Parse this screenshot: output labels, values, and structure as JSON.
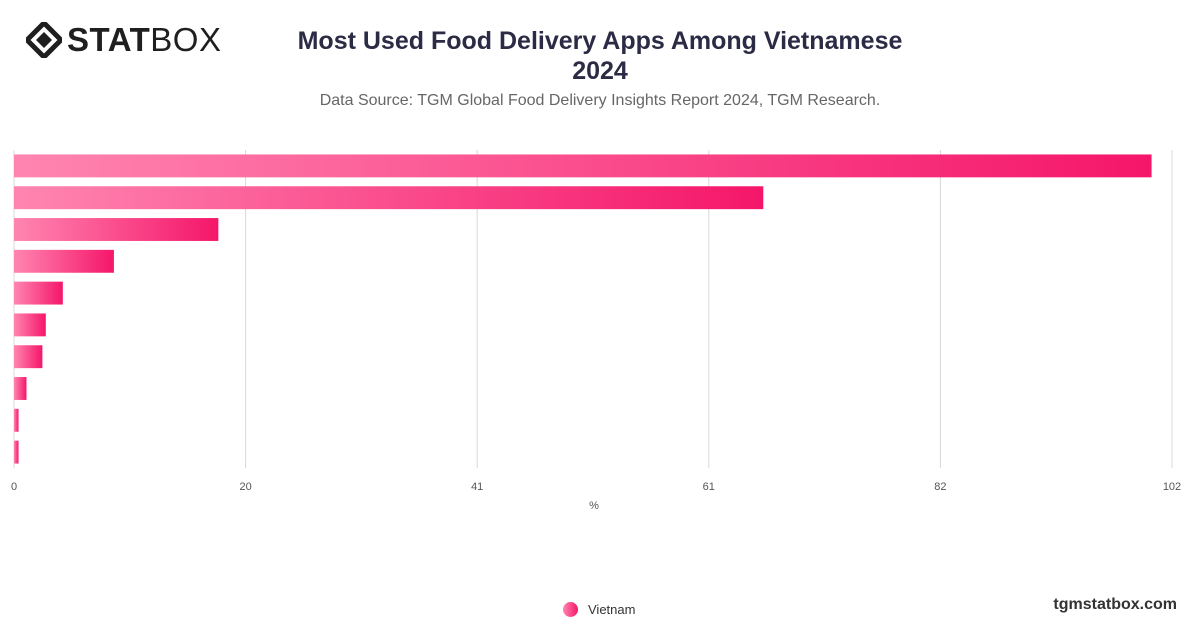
{
  "brand": {
    "logo_bold": "STAT",
    "logo_regular": "BOX",
    "logo_icon": "diamond-logo-icon",
    "watermark": "tgmstatbox.com"
  },
  "header": {
    "title_line1": "Most Used Food Delivery Apps Among Vietnamese",
    "title_line2": "2024",
    "subtitle": "Data Source: TGM Global Food Delivery Insights Report 2024, TGM Research."
  },
  "colors": {
    "bar_start": "#ff85b0",
    "bar_end": "#f5166a",
    "grid": "#d8d8d8",
    "title": "#2b2b45"
  },
  "chart_data": {
    "type": "bar",
    "orientation": "horizontal",
    "title": "Most Used Food Delivery Apps Among Vietnamese 2024",
    "xlabel": "%",
    "ylabel": "",
    "xlim": [
      0,
      102
    ],
    "x_ticks": [
      "0",
      "20",
      "41",
      "61",
      "82",
      "102"
    ],
    "x_tick_values": [
      0,
      20.4,
      40.8,
      61.2,
      81.6,
      102
    ],
    "grid": true,
    "legend": "bottom-center",
    "series": [
      {
        "name": "Vietnam",
        "values": [
          100.2,
          66.0,
          18.0,
          8.8,
          4.3,
          2.8,
          2.5,
          1.1,
          0.4,
          0.4
        ]
      }
    ]
  }
}
